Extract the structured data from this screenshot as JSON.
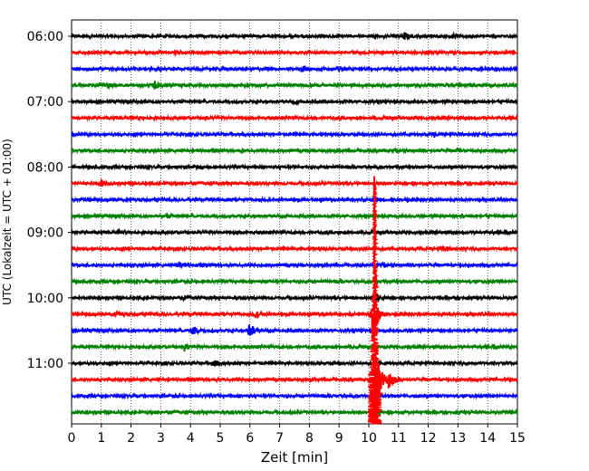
{
  "chart_data": {
    "type": "line",
    "xlabel": "Zeit  [min]",
    "ylabel": "UTC (Lokalzeit = UTC + 01:00)",
    "xlim": [
      0,
      15
    ],
    "x_ticks": [
      0,
      1,
      2,
      3,
      4,
      5,
      6,
      7,
      8,
      9,
      10,
      11,
      12,
      13,
      14,
      15
    ],
    "x_tick_labels": [
      "0",
      "1",
      "2",
      "3",
      "4",
      "5",
      "6",
      "7",
      "8",
      "9",
      "10",
      "11",
      "12",
      "13",
      "14",
      "15"
    ],
    "y_tick_labels": [
      "06:00",
      "07:00",
      "08:00",
      "09:00",
      "10:00",
      "11:00"
    ],
    "trace_interval_minutes": 15,
    "first_trace_time": "06:00",
    "trace_count": 24,
    "trace_color_cycle": [
      "#000000",
      "#ff0000",
      "#0000ff",
      "#008000"
    ],
    "vertical_grid": "dotted",
    "series": [
      {
        "start": "06:00",
        "bursts": [
          {
            "t": 11.2,
            "amp": 0.35
          },
          {
            "t": 12.8,
            "amp": 0.2
          }
        ]
      },
      {
        "start": "06:15",
        "bursts": [
          {
            "t": 3.5,
            "amp": 0.12
          }
        ]
      },
      {
        "start": "06:30",
        "bursts": [
          {
            "t": 7.8,
            "amp": 0.28
          },
          {
            "t": 9.0,
            "amp": 0.22
          }
        ]
      },
      {
        "start": "06:45",
        "bursts": [
          {
            "t": 1.2,
            "amp": 0.25
          },
          {
            "t": 2.8,
            "amp": 0.4
          }
        ]
      },
      {
        "start": "07:00",
        "bursts": [
          {
            "t": 7.5,
            "amp": 0.2
          }
        ]
      },
      {
        "start": "07:15",
        "bursts": [
          {
            "t": 4.5,
            "amp": 0.12
          }
        ]
      },
      {
        "start": "07:30",
        "bursts": [
          {
            "t": 12.2,
            "amp": 0.18
          }
        ]
      },
      {
        "start": "07:45",
        "bursts": [
          {
            "t": 13.0,
            "amp": 0.15
          }
        ]
      },
      {
        "start": "08:00",
        "bursts": [
          {
            "t": 4.2,
            "amp": 0.12
          }
        ]
      },
      {
        "start": "08:15",
        "bursts": [
          {
            "t": 1.0,
            "amp": 0.35
          }
        ]
      },
      {
        "start": "08:30",
        "bursts": [
          {
            "t": 10.2,
            "amp": 0.25
          }
        ]
      },
      {
        "start": "08:45",
        "bursts": [
          {
            "t": 3.2,
            "amp": 0.12
          }
        ]
      },
      {
        "start": "09:00",
        "bursts": [
          {
            "t": 1.6,
            "amp": 0.12
          }
        ]
      },
      {
        "start": "09:15",
        "bursts": [
          {
            "t": 12.5,
            "amp": 0.15
          }
        ]
      },
      {
        "start": "09:30",
        "bursts": [
          {
            "t": 3.6,
            "amp": 0.3
          },
          {
            "t": 10.2,
            "amp": 0.2
          }
        ]
      },
      {
        "start": "09:45",
        "bursts": [
          {
            "t": 6.5,
            "amp": 0.12
          }
        ]
      },
      {
        "start": "10:00",
        "bursts": [
          {
            "t": 3.8,
            "amp": 0.15
          },
          {
            "t": 10.2,
            "amp": 0.6
          }
        ]
      },
      {
        "start": "10:15",
        "bursts": [
          {
            "t": 1.5,
            "amp": 0.3
          },
          {
            "t": 6.2,
            "amp": 0.3
          },
          {
            "t": 10.15,
            "amp": 2.5
          }
        ]
      },
      {
        "start": "10:30",
        "bursts": [
          {
            "t": 4.1,
            "amp": 0.45
          },
          {
            "t": 6.0,
            "amp": 0.7
          }
        ]
      },
      {
        "start": "10:45",
        "bursts": [
          {
            "t": 3.8,
            "amp": 0.45
          }
        ]
      },
      {
        "start": "11:00",
        "bursts": [
          {
            "t": 4.8,
            "amp": 0.35
          }
        ]
      },
      {
        "start": "11:15",
        "bursts": [
          {
            "t": 10.3,
            "amp": 3.0
          },
          {
            "t": 10.7,
            "amp": 1.2
          }
        ]
      },
      {
        "start": "11:30",
        "bursts": [
          {
            "t": 10.2,
            "amp": 0.4
          }
        ]
      },
      {
        "start": "11:45",
        "bursts": [
          {
            "t": 10.2,
            "amp": 0.6
          }
        ]
      }
    ],
    "event": {
      "t": 10.2,
      "trace": "08:15",
      "color": "#ff0000",
      "spans_to": "11:45"
    }
  }
}
